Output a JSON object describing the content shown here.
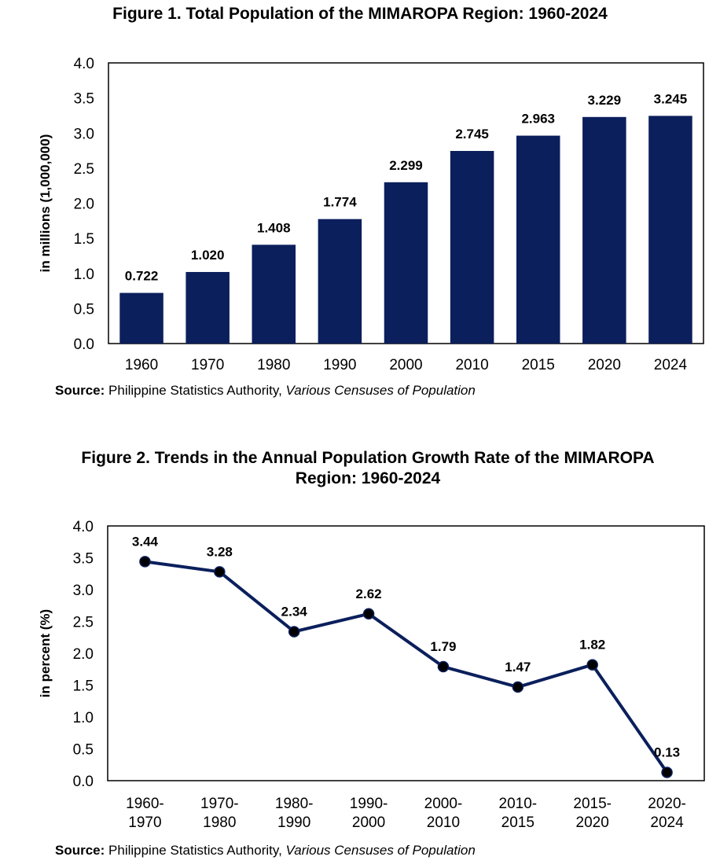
{
  "figure1": {
    "title": "Figure 1. Total Population of the MIMAROPA Region: 1960-2024",
    "source_label": "Source:",
    "source_org": " Philippine Statistics Authority, ",
    "source_doc": "Various Censuses of Population"
  },
  "figure2": {
    "title_line1": "Figure 2. Trends in the Annual Population Growth Rate of the MIMAROPA",
    "title_line2": "Region: 1960-2024",
    "source_label": "Source:",
    "source_org": " Philippine Statistics Authority, ",
    "source_doc": "Various Censuses of Population"
  },
  "colors": {
    "bar": "#0b1f5c",
    "line": "#0b1f5c",
    "marker": "#000000",
    "frame": "#000000"
  },
  "chart_data": [
    {
      "type": "bar",
      "categories": [
        "1960",
        "1970",
        "1980",
        "1990",
        "2000",
        "2010",
        "2015",
        "2020",
        "2024"
      ],
      "values": [
        0.722,
        1.02,
        1.408,
        1.774,
        2.299,
        2.745,
        2.963,
        3.229,
        3.245
      ],
      "data_labels": [
        "0.722",
        "1.020",
        "1.408",
        "1.774",
        "2.299",
        "2.745",
        "2.963",
        "3.229",
        "3.245"
      ],
      "ylabel": "in millions (1,000,000)",
      "ylim": [
        0,
        4.0
      ],
      "yticks": [
        "0.0",
        "0.5",
        "1.0",
        "1.5",
        "2.0",
        "2.5",
        "3.0",
        "3.5",
        "4.0"
      ],
      "grid": false
    },
    {
      "type": "line",
      "categories": [
        [
          "1960-",
          "1970"
        ],
        [
          "1970-",
          "1980"
        ],
        [
          "1980-",
          "1990"
        ],
        [
          "1990-",
          "2000"
        ],
        [
          "2000-",
          "2010"
        ],
        [
          "2010-",
          "2015"
        ],
        [
          "2015-",
          "2020"
        ],
        [
          "2020-",
          "2024"
        ]
      ],
      "values": [
        3.44,
        3.28,
        2.34,
        2.62,
        1.79,
        1.47,
        1.82,
        0.13
      ],
      "data_labels": [
        "3.44",
        "3.28",
        "2.34",
        "2.62",
        "1.79",
        "1.47",
        "1.82",
        "0.13"
      ],
      "ylabel": "in percent (%)",
      "ylim": [
        0,
        4.0
      ],
      "yticks": [
        "0.0",
        "0.5",
        "1.0",
        "1.5",
        "2.0",
        "2.5",
        "3.0",
        "3.5",
        "4.0"
      ],
      "grid": false,
      "markers": true
    }
  ]
}
